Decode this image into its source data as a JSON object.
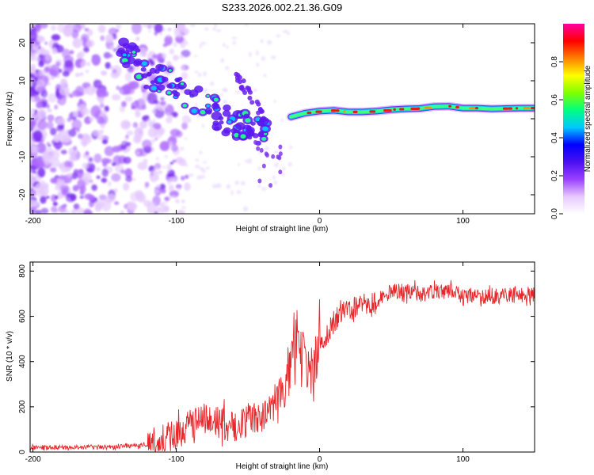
{
  "title": "S233.2026.002.21.36.G09",
  "colors": {
    "snr_line": "#e8262a",
    "ridge": "#e02018",
    "purple": "#7a2cf0",
    "frame": "#000000"
  },
  "colormap_stops": [
    "#ffffff",
    "#e6c8ff",
    "#9a40ff",
    "#4a10f0",
    "#0000ff",
    "#00c8ff",
    "#00ff80",
    "#80ff00",
    "#ffff00",
    "#ff8000",
    "#ff0000",
    "#ff00a0"
  ],
  "chart_data": [
    {
      "type": "heatmap",
      "name": "spectrogram",
      "title": "S233.2026.002.21.36.G09",
      "xlabel": "Height of straight line (km)",
      "ylabel": "Frequency (Hz)",
      "xlim": [
        -202,
        150
      ],
      "ylim": [
        -25,
        25
      ],
      "xticks": [
        -200,
        -100,
        0,
        100
      ],
      "yticks": [
        -20,
        -10,
        0,
        10,
        20
      ],
      "colorbar": {
        "label": "Normalized spectral amplitude",
        "range": [
          0,
          1
        ],
        "ticks": [
          "0.0",
          "0.2",
          "0.4",
          "0.6",
          "0.8"
        ]
      },
      "ridge": {
        "description_free": true,
        "points": [
          [
            -20,
            0.5
          ],
          [
            -10,
            1.5
          ],
          [
            0,
            2.0
          ],
          [
            10,
            2.2
          ],
          [
            20,
            1.8
          ],
          [
            30,
            1.8
          ],
          [
            40,
            2.0
          ],
          [
            50,
            2.4
          ],
          [
            60,
            2.6
          ],
          [
            70,
            2.7
          ],
          [
            80,
            3.2
          ],
          [
            90,
            3.3
          ],
          [
            100,
            2.8
          ],
          [
            110,
            2.8
          ],
          [
            120,
            2.6
          ],
          [
            130,
            2.7
          ],
          [
            140,
            2.8
          ],
          [
            150,
            2.8
          ]
        ]
      },
      "descending_band": [
        [
          -140,
          20
        ],
        [
          -120,
          12
        ],
        [
          -100,
          8
        ],
        [
          -85,
          4
        ],
        [
          -70,
          1
        ],
        [
          -55,
          -2
        ],
        [
          -45,
          -3
        ],
        [
          -35,
          -2
        ]
      ],
      "secondary_band": [
        [
          -60,
          12
        ],
        [
          -48,
          6
        ],
        [
          -40,
          1
        ]
      ]
    },
    {
      "type": "line",
      "name": "snr",
      "xlabel": "Height of straight line (km)",
      "ylabel": "SNR (10 * v/v)",
      "xlim": [
        -202,
        150
      ],
      "ylim": [
        0,
        840
      ],
      "xticks": [
        -200,
        -100,
        0,
        100
      ],
      "yticks": [
        0,
        200,
        400,
        600,
        800
      ],
      "series": [
        {
          "name": "SNR",
          "x": [
            -202,
            -180,
            -160,
            -140,
            -120,
            -110,
            -100,
            -90,
            -80,
            -70,
            -60,
            -50,
            -40,
            -30,
            -25,
            -20,
            -18,
            -15,
            -10,
            -5,
            0,
            5,
            10,
            20,
            30,
            40,
            50,
            60,
            70,
            80,
            90,
            100,
            110,
            120,
            130,
            140,
            150
          ],
          "values": [
            20,
            20,
            22,
            25,
            30,
            50,
            80,
            120,
            160,
            130,
            110,
            140,
            160,
            220,
            300,
            340,
            520,
            420,
            380,
            400,
            470,
            520,
            580,
            630,
            650,
            670,
            710,
            710,
            700,
            710,
            710,
            690,
            690,
            690,
            690,
            695,
            700
          ]
        }
      ]
    }
  ]
}
